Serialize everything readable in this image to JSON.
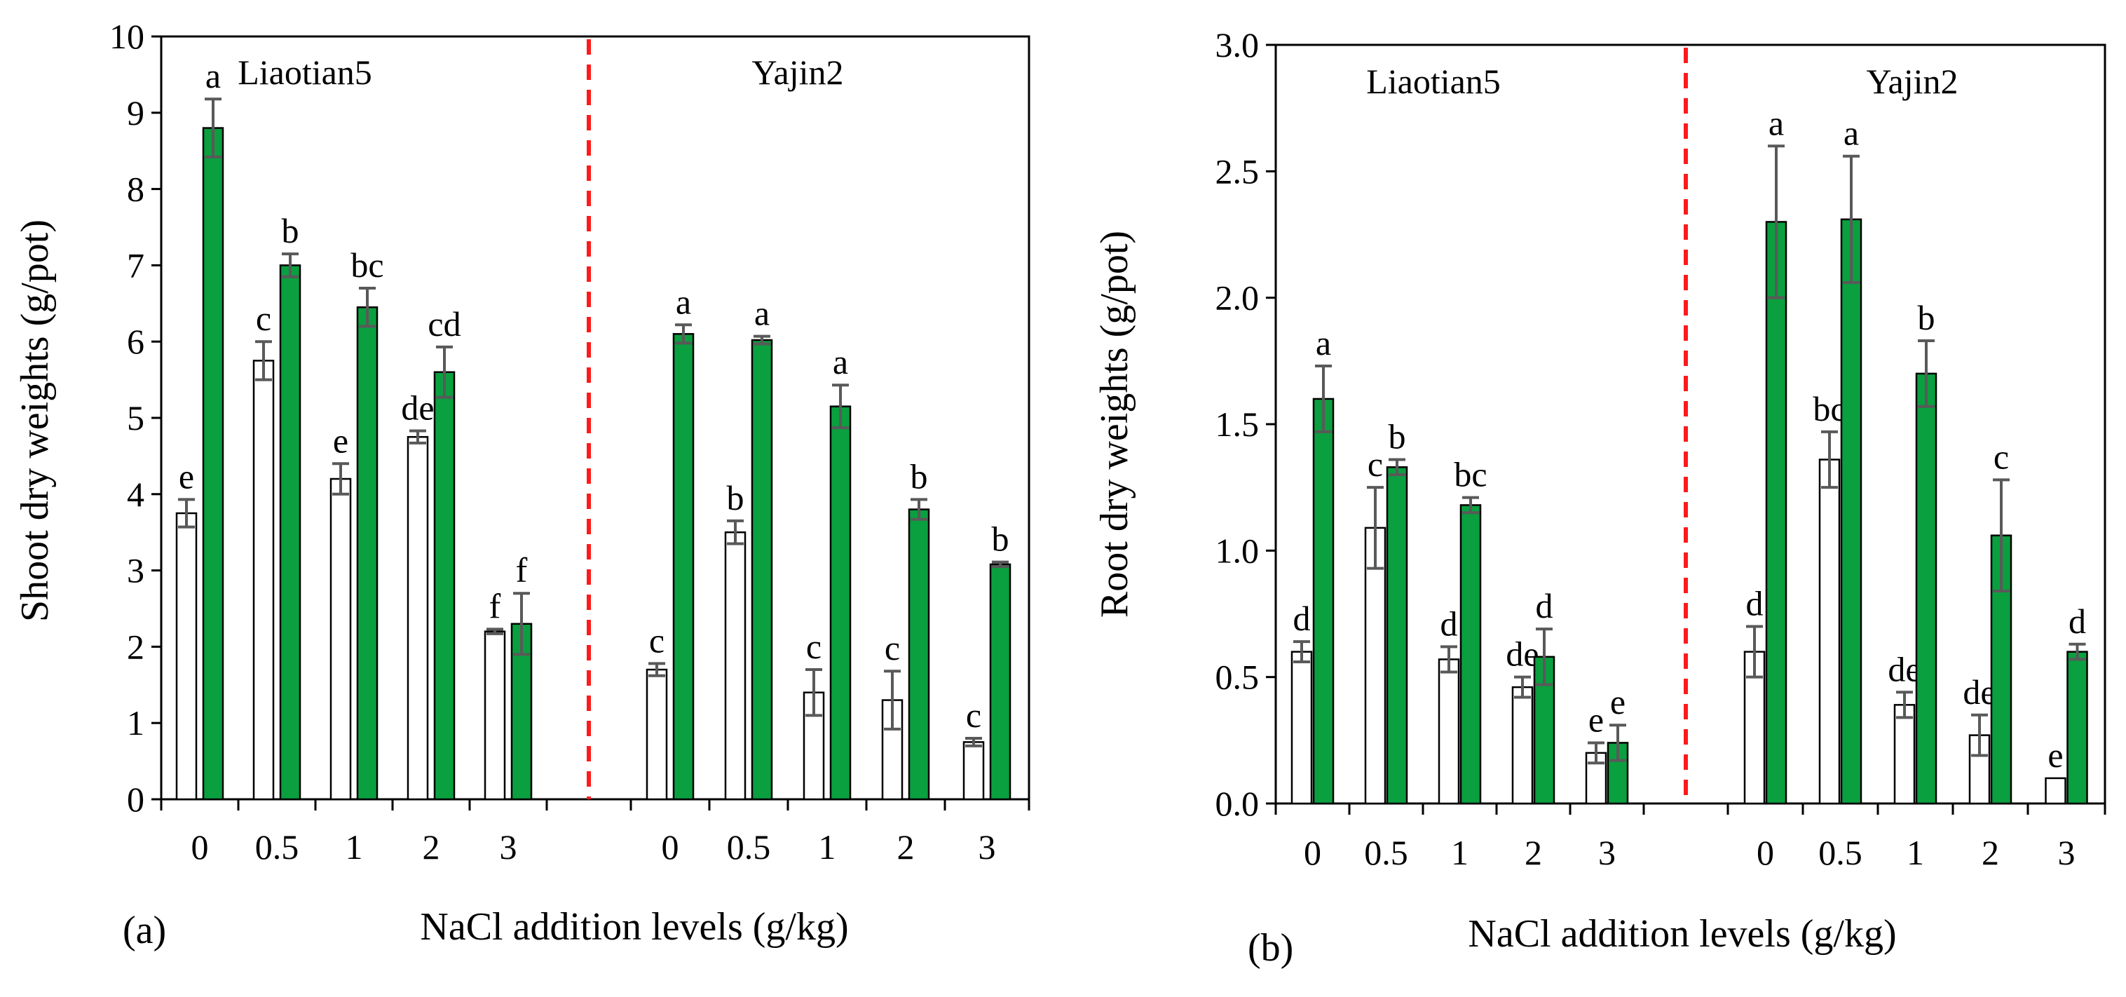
{
  "chart_data": [
    {
      "type": "bar",
      "panel_label": "(a)",
      "ylabel": "Shoot dry weights (g/pot)",
      "xlabel": "NaCl addition levels (g/kg)",
      "ylim": [
        0,
        10
      ],
      "yticks": [
        0,
        1,
        2,
        3,
        4,
        5,
        6,
        7,
        8,
        9,
        10
      ],
      "ytick_labels": [
        "0",
        "1",
        "2",
        "3",
        "4",
        "5",
        "6",
        "7",
        "8",
        "9",
        "10"
      ],
      "groups": [
        {
          "name": "Liaotian5",
          "categories": [
            "0",
            "0.5",
            "1",
            "2",
            "3"
          ],
          "series": [
            {
              "color": "#ffffff",
              "values": [
                3.75,
                5.75,
                4.2,
                4.75,
                2.2
              ],
              "errors": [
                0.18,
                0.25,
                0.2,
                0.08,
                0.03
              ],
              "letters": [
                "e",
                "c",
                "e",
                "de",
                "f"
              ]
            },
            {
              "color": "#0a9f3f",
              "values": [
                8.8,
                7.0,
                6.45,
                5.6,
                2.3
              ],
              "errors": [
                0.38,
                0.15,
                0.25,
                0.33,
                0.4
              ],
              "letters": [
                "a",
                "b",
                "bc",
                "cd",
                "f"
              ]
            }
          ]
        },
        {
          "name": "Yajin2",
          "categories": [
            "0",
            "0.5",
            "1",
            "2",
            "3"
          ],
          "series": [
            {
              "color": "#ffffff",
              "values": [
                1.7,
                3.5,
                1.4,
                1.3,
                0.75
              ],
              "errors": [
                0.08,
                0.15,
                0.3,
                0.38,
                0.05
              ],
              "letters": [
                "c",
                "b",
                "c",
                "c",
                "c"
              ]
            },
            {
              "color": "#0a9f3f",
              "values": [
                6.1,
                6.02,
                5.15,
                3.8,
                3.08
              ],
              "errors": [
                0.12,
                0.05,
                0.28,
                0.13,
                0.03
              ],
              "letters": [
                "a",
                "a",
                "a",
                "b",
                "b"
              ]
            }
          ]
        }
      ]
    },
    {
      "type": "bar",
      "panel_label": "(b)",
      "ylabel": "Root dry weights (g/pot)",
      "xlabel": "NaCl addition levels (g/kg)",
      "ylim": [
        0,
        3
      ],
      "yticks": [
        0,
        0.5,
        1,
        1.5,
        2,
        2.5,
        3
      ],
      "ytick_labels": [
        "0.0",
        "0.5",
        "1.0",
        "1.5",
        "2.0",
        "2.5",
        "3.0"
      ],
      "groups": [
        {
          "name": "Liaotian5",
          "categories": [
            "0",
            "0.5",
            "1",
            "2",
            "3"
          ],
          "series": [
            {
              "color": "#ffffff",
              "values": [
                0.6,
                1.09,
                0.57,
                0.46,
                0.2
              ],
              "errors": [
                0.04,
                0.16,
                0.05,
                0.04,
                0.04
              ],
              "letters": [
                "d",
                "c",
                "d",
                "de",
                "e"
              ]
            },
            {
              "color": "#0a9f3f",
              "values": [
                1.6,
                1.33,
                1.18,
                0.58,
                0.24
              ],
              "errors": [
                0.13,
                0.03,
                0.03,
                0.11,
                0.07
              ],
              "letters": [
                "a",
                "b",
                "bc",
                "d",
                "e"
              ]
            }
          ]
        },
        {
          "name": "Yajin2",
          "categories": [
            "0",
            "0.5",
            "1",
            "2",
            "3"
          ],
          "series": [
            {
              "color": "#ffffff",
              "values": [
                0.6,
                1.36,
                0.39,
                0.27,
                0.1
              ],
              "errors": [
                0.1,
                0.11,
                0.05,
                0.08,
                0.0
              ],
              "letters": [
                "d",
                "bc",
                "de",
                "de",
                "e"
              ]
            },
            {
              "color": "#0a9f3f",
              "values": [
                2.3,
                2.31,
                1.7,
                1.06,
                0.6
              ],
              "errors": [
                0.3,
                0.25,
                0.13,
                0.22,
                0.03
              ],
              "letters": [
                "a",
                "a",
                "b",
                "c",
                "d"
              ]
            }
          ]
        }
      ]
    }
  ]
}
